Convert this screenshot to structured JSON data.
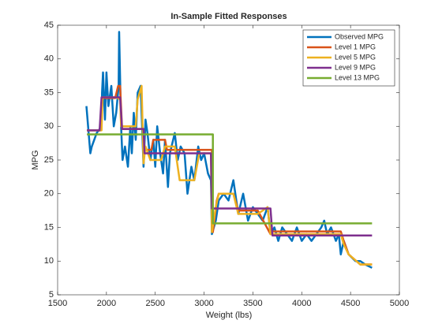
{
  "chart_data": {
    "type": "line",
    "title": "In-Sample Fitted Responses",
    "xlabel": "Weight (lbs)",
    "ylabel": "MPG",
    "xlim": [
      1500,
      5000
    ],
    "xticks": [
      1500,
      2000,
      2500,
      3000,
      3500,
      4000,
      4500,
      5000
    ],
    "ylim": [
      5,
      45
    ],
    "yticks": [
      5,
      10,
      15,
      20,
      25,
      30,
      35,
      40,
      45
    ],
    "legend": "northeast",
    "grid": false,
    "series": [
      {
        "name": "Observed MPG",
        "color": "#0072bd",
        "x": [
          1795,
          1835,
          1850,
          1900,
          1950,
          1955,
          1965,
          1985,
          2000,
          2020,
          2050,
          2075,
          2100,
          2125,
          2130,
          2150,
          2165,
          2190,
          2220,
          2245,
          2260,
          2280,
          2300,
          2320,
          2350,
          2380,
          2400,
          2420,
          2450,
          2480,
          2500,
          2520,
          2550,
          2580,
          2600,
          2630,
          2650,
          2700,
          2730,
          2760,
          2800,
          2830,
          2870,
          2900,
          2940,
          2970,
          3000,
          3040,
          3070,
          3080,
          3120,
          3150,
          3200,
          3250,
          3300,
          3350,
          3400,
          3450,
          3500,
          3550,
          3600,
          3650,
          3680,
          3720,
          3760,
          3800,
          3850,
          3900,
          3950,
          4000,
          4050,
          4100,
          4150,
          4200,
          4230,
          4260,
          4300,
          4350,
          4380,
          4400,
          4430,
          4480,
          4550,
          4600,
          4650,
          4720
        ],
        "values": [
          33,
          26,
          27,
          29,
          30,
          35,
          38,
          31,
          38,
          33,
          36,
          30,
          32,
          36,
          44,
          30,
          25,
          27,
          24,
          30,
          26,
          32,
          28,
          35,
          36,
          24,
          31,
          29,
          25,
          28,
          24,
          30,
          26,
          23,
          28,
          21,
          26,
          29,
          25,
          27,
          26,
          20,
          24,
          22,
          27,
          25,
          26,
          23,
          22,
          14,
          16,
          19,
          20,
          19,
          22,
          17,
          20,
          16,
          18,
          17,
          16,
          18,
          14,
          15,
          13,
          15,
          14,
          13,
          15,
          13,
          14,
          13,
          14,
          15,
          16,
          14,
          15,
          13,
          14,
          11,
          13,
          11,
          10,
          10,
          9.5,
          9
        ]
      },
      {
        "name": "Level 1 MPG",
        "color": "#d95319",
        "x": [
          1800,
          1940,
          1960,
          2090,
          2120,
          2140,
          2160,
          2380,
          2390,
          2460,
          2480,
          2600,
          2620,
          3080,
          3090,
          3130,
          3150,
          3300,
          3350,
          3550,
          3680,
          3700,
          4400,
          4430,
          4480,
          4600,
          4720
        ],
        "values": [
          29.4,
          29.4,
          34.2,
          34.2,
          36,
          36,
          29.6,
          29.6,
          26.5,
          26.5,
          28,
          28,
          26.5,
          26.5,
          14.3,
          19,
          20,
          20,
          17.5,
          17.5,
          14,
          14.4,
          14.4,
          13,
          11,
          9.5,
          9.5
        ]
      },
      {
        "name": "Level 5 MPG",
        "color": "#edb120",
        "x": [
          1800,
          1950,
          1960,
          2100,
          2140,
          2150,
          2300,
          2320,
          2360,
          2380,
          2400,
          2450,
          2560,
          2600,
          2700,
          2750,
          2900,
          2950,
          3070,
          3080,
          3120,
          3150,
          3300,
          3350,
          3550,
          3650,
          3680,
          3700,
          4400,
          4430,
          4480,
          4600,
          4720
        ],
        "values": [
          29.4,
          29.4,
          34.3,
          34.3,
          34,
          30,
          30,
          34,
          36,
          24.5,
          27,
          25,
          25,
          27,
          27,
          22,
          22,
          26,
          26,
          14.3,
          18,
          20,
          20,
          17,
          17,
          18,
          14,
          14,
          14,
          12.5,
          11,
          9.5,
          9.5
        ]
      },
      {
        "name": "Level 9 MPG",
        "color": "#7e2f8e",
        "x": [
          1800,
          1930,
          1950,
          2140,
          2160,
          2380,
          2390,
          3070,
          3080,
          3680,
          3700,
          4720
        ],
        "values": [
          29.4,
          29.4,
          34.3,
          34.3,
          29.6,
          29.6,
          26,
          26,
          17.8,
          17.8,
          13.8,
          13.8
        ]
      },
      {
        "name": "Level 13 MPG",
        "color": "#77ac30",
        "x": [
          1800,
          3090,
          3090,
          4720
        ],
        "values": [
          28.8,
          28.8,
          15.6,
          15.6
        ]
      }
    ]
  }
}
